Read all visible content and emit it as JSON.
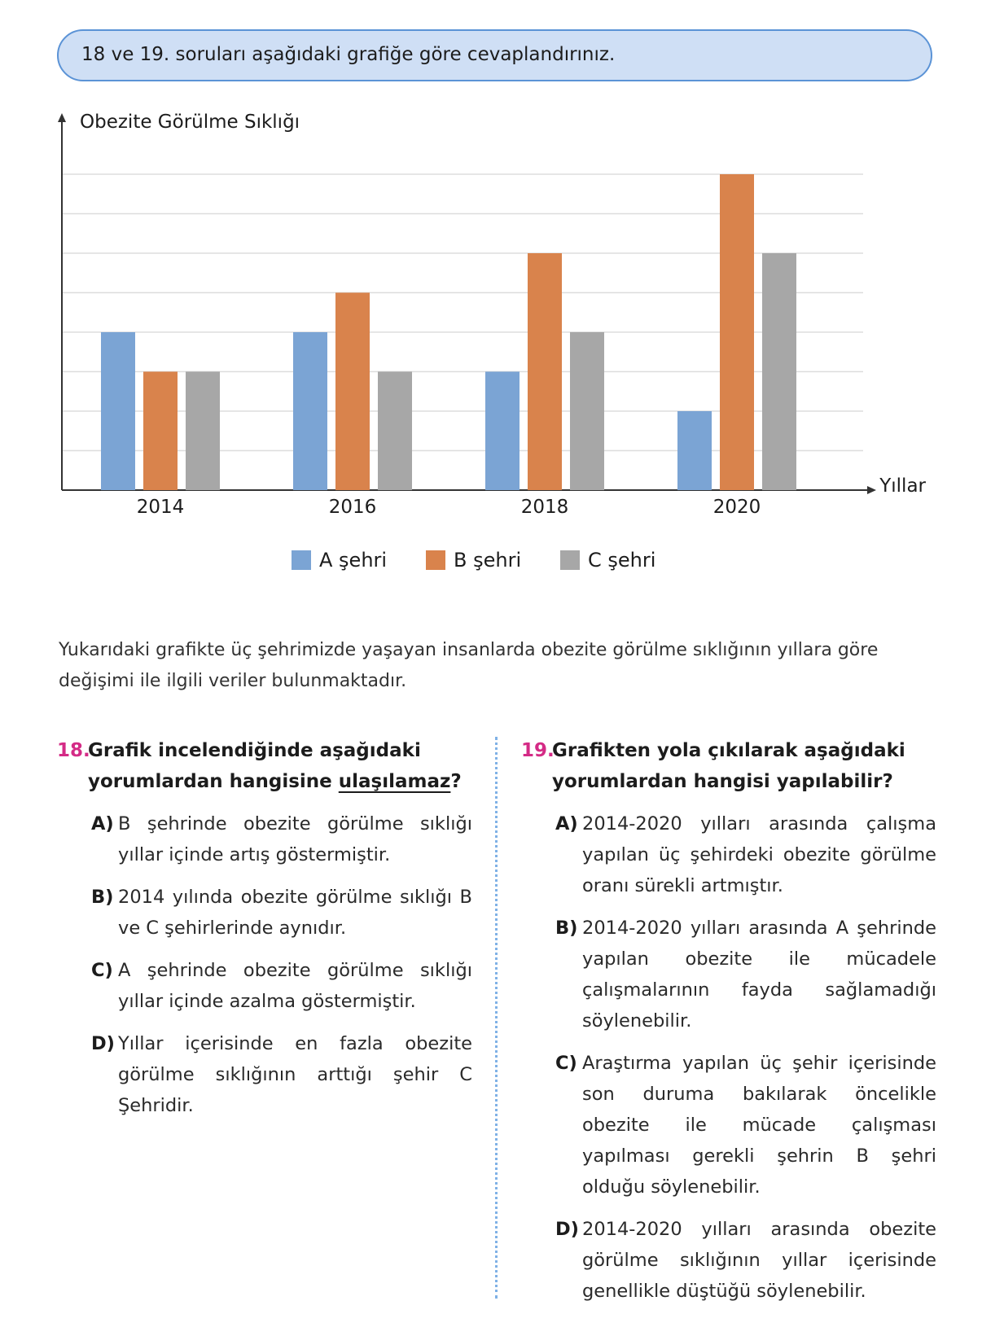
{
  "banner": {
    "text": "18 ve 19. soruları aşağıdaki grafiğe göre cevaplandırınız."
  },
  "chart_data": {
    "type": "bar",
    "ylabel": "Obezite Görülme Sıklığı",
    "xlabel": "Yıllar",
    "categories": [
      "2014",
      "2016",
      "2018",
      "2020"
    ],
    "series": [
      {
        "name": "A şehri",
        "values": [
          4,
          4,
          3,
          2
        ],
        "color": "#7ba4d4"
      },
      {
        "name": "B şehri",
        "values": [
          3,
          5,
          6,
          8
        ],
        "color": "#d9834c"
      },
      {
        "name": "C şehri",
        "values": [
          3,
          3,
          4,
          6
        ],
        "color": "#a7a7a7"
      }
    ],
    "ylim": [
      0,
      8
    ],
    "y_tick_labels": "none",
    "grid": true,
    "legend": "bottom-center"
  },
  "intro": "Yukarıdaki grafikte üç şehrimizde yaşayan insanlarda obezite görülme sıklığının yıllara göre değişimi ile ilgili veriler bulunmaktadır.",
  "q18": {
    "number": "18.",
    "stem_start": "Grafik incelendiğinde aşağıdaki yorumlardan hangisine ",
    "stem_underlined": "ulaşılamaz",
    "stem_end": "?",
    "options": [
      {
        "label": "A)",
        "text": "B şehrinde obezite görülme sıklığı yıllar içinde artış göstermiştir."
      },
      {
        "label": "B)",
        "text": "2014 yılında obezite görülme sıklığı B ve C şehirlerinde aynıdır."
      },
      {
        "label": "C)",
        "text": "A şehrinde obezite görülme sıklığı yıllar içinde azalma göstermiştir."
      },
      {
        "label": "D)",
        "text": "Yıllar içerisinde en fazla obezite görülme sıklığının arttığı şehir C Şehridir."
      }
    ]
  },
  "q19": {
    "number": "19.",
    "stem": "Grafikten yola çıkılarak aşağıdaki yorumlardan hangisi yapılabilir?",
    "options": [
      {
        "label": "A)",
        "text": "2014-2020 yılları arasında çalışma yapılan üç şehirdeki obezite görülme oranı sürekli artmıştır."
      },
      {
        "label": "B)",
        "text": "2014-2020 yılları arasında A şehrinde yapılan obezite ile mücadele çalışmalarının fayda sağlamadığı söylenebilir."
      },
      {
        "label": "C)",
        "text": "Araştırma yapılan üç şehir içerisinde son duruma bakılarak öncelikle obezite ile mücade çalışması yapılması gerekli şehrin B şehri olduğu söylenebilir."
      },
      {
        "label": "D)",
        "text": "2014-2020 yılları arasında obezite görülme sıklığının yıllar içerisinde genellikle düştüğü söylenebilir."
      }
    ]
  }
}
